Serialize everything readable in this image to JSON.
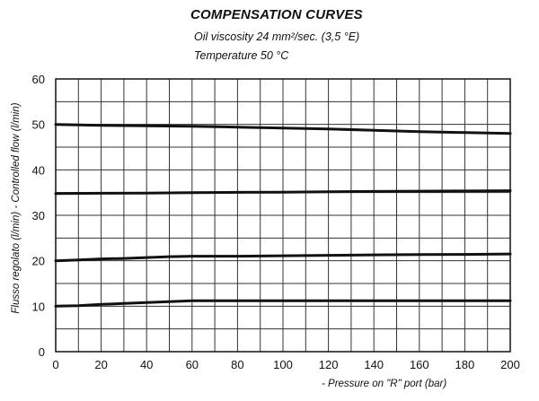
{
  "chart_data": {
    "type": "line",
    "title": "COMPENSATION CURVES",
    "subtitle_lines": [
      "Oil viscosity 24 mm²/sec. (3,5 °E)",
      "Temperature 50 °C"
    ],
    "xlabel": "- Pressure on \"R\" port (bar)",
    "ylabel": "Flusso regolato (l/min) - Controlled flow (l/min)",
    "xlim": [
      0,
      200
    ],
    "ylim": [
      0,
      60
    ],
    "x_ticks": [
      0,
      20,
      40,
      60,
      80,
      100,
      120,
      140,
      160,
      180,
      200
    ],
    "y_ticks": [
      0,
      10,
      20,
      30,
      40,
      50,
      60
    ],
    "x_grid_step": 10,
    "y_grid_step": 5,
    "grid": true,
    "legend": "none",
    "series": [
      {
        "x": [
          0,
          20,
          40,
          60,
          80,
          100,
          120,
          140,
          160,
          180,
          200
        ],
        "values": [
          50,
          49.8,
          49.7,
          49.6,
          49.4,
          49.2,
          49.0,
          48.7,
          48.4,
          48.2,
          48.0
        ]
      },
      {
        "x": [
          0,
          20,
          40,
          60,
          80,
          100,
          120,
          140,
          160,
          180,
          200
        ],
        "values": [
          34.8,
          34.85,
          34.9,
          35.0,
          35.05,
          35.1,
          35.2,
          35.25,
          35.3,
          35.35,
          35.4
        ]
      },
      {
        "x": [
          0,
          10,
          20,
          30,
          40,
          50,
          60,
          80,
          100,
          120,
          140,
          160,
          180,
          200
        ],
        "values": [
          20,
          20.2,
          20.4,
          20.5,
          20.7,
          20.9,
          21.0,
          21.0,
          21.1,
          21.2,
          21.3,
          21.35,
          21.4,
          21.5
        ]
      },
      {
        "x": [
          0,
          10,
          20,
          30,
          40,
          50,
          60,
          80,
          100,
          120,
          140,
          160,
          180,
          200
        ],
        "values": [
          10,
          10.1,
          10.4,
          10.6,
          10.8,
          11.0,
          11.2,
          11.2,
          11.2,
          11.2,
          11.2,
          11.2,
          11.2,
          11.2
        ]
      }
    ],
    "line_color": "#111111",
    "grid_color": "#333333"
  }
}
